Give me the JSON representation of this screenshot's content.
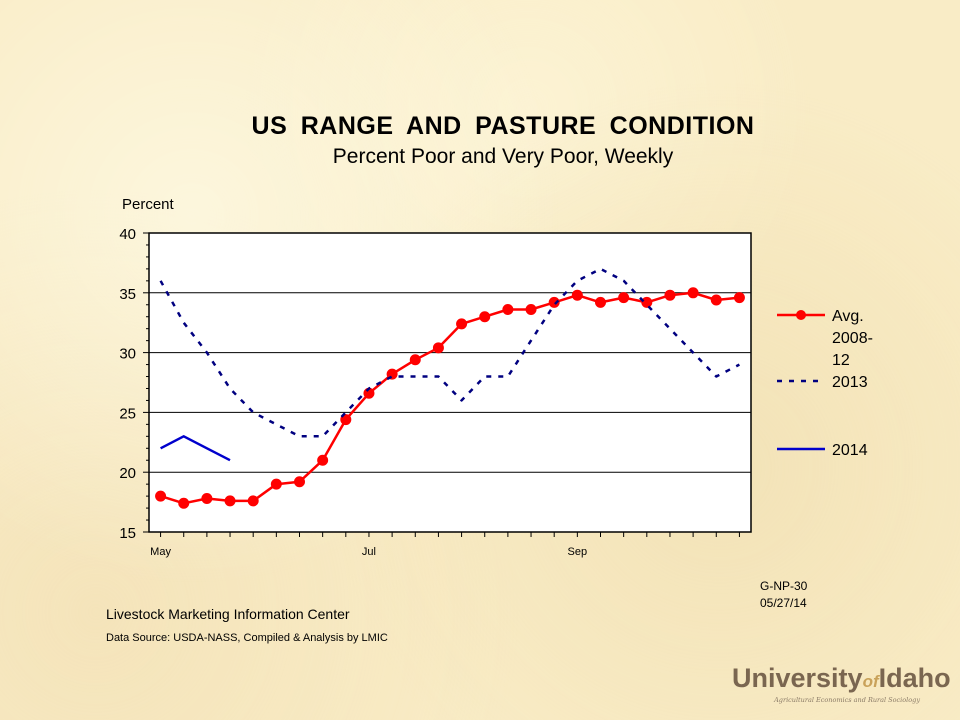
{
  "chart_data": {
    "type": "line",
    "title": "US  RANGE  AND  PASTURE  CONDITION",
    "subtitle": "Percent Poor and Very Poor, Weekly",
    "ylabel": "Percent",
    "ylim": [
      15,
      40
    ],
    "yticks": [
      "15",
      "20",
      "25",
      "30",
      "35",
      "40"
    ],
    "x_tick_labels": [
      {
        "label": "May",
        "week": 1
      },
      {
        "label": "Jul",
        "week": 10
      },
      {
        "label": "Sep",
        "week": 19
      }
    ],
    "x_range": [
      0.5,
      26.5
    ],
    "grid": "horizontal",
    "legend_position": "right",
    "series": [
      {
        "name": "Avg. 2008-12",
        "name_lines": [
          "Avg.",
          "2008-",
          "12"
        ],
        "color": "#ff0000",
        "style": "solid-markers",
        "x": [
          1,
          2,
          3,
          4,
          5,
          6,
          7,
          8,
          9,
          10,
          11,
          12,
          13,
          14,
          15,
          16,
          17,
          18,
          19,
          20,
          21,
          22,
          23,
          24,
          25,
          26
        ],
        "values": [
          18.0,
          17.4,
          17.8,
          17.6,
          17.6,
          19.0,
          19.2,
          21.0,
          24.4,
          26.6,
          28.2,
          29.4,
          30.4,
          32.4,
          33.0,
          33.6,
          33.6,
          34.2,
          34.8,
          34.2,
          34.6,
          34.2,
          34.8,
          35.0,
          34.4,
          34.6
        ]
      },
      {
        "name": "2013",
        "color": "#000080",
        "style": "dashed",
        "x": [
          1,
          2,
          3,
          4,
          5,
          6,
          7,
          8,
          9,
          10,
          11,
          12,
          13,
          14,
          15,
          16,
          17,
          18,
          19,
          20,
          21,
          22,
          23,
          24,
          25,
          26
        ],
        "values": [
          36,
          32.5,
          30,
          27,
          25,
          24,
          23,
          23,
          25,
          27,
          28,
          28,
          28,
          26,
          28,
          28,
          31,
          34,
          36,
          37,
          36,
          34,
          32,
          30,
          28,
          29
        ]
      },
      {
        "name": "2014",
        "color": "#0000cc",
        "style": "solid",
        "x": [
          1,
          2,
          3,
          4
        ],
        "values": [
          22,
          23,
          22,
          21
        ]
      }
    ]
  },
  "chart_code": "G-NP-30",
  "chart_date": "05/27/14",
  "footer": {
    "organization": "Livestock Marketing Information  Center",
    "source": "Data Source:  USDA-NASS, Compiled & Analysis by LMIC"
  },
  "logo": {
    "word1": "University",
    "word2": "of",
    "word3": "Idaho",
    "tagline": "Agricultural Economics and Rural Sociology"
  }
}
